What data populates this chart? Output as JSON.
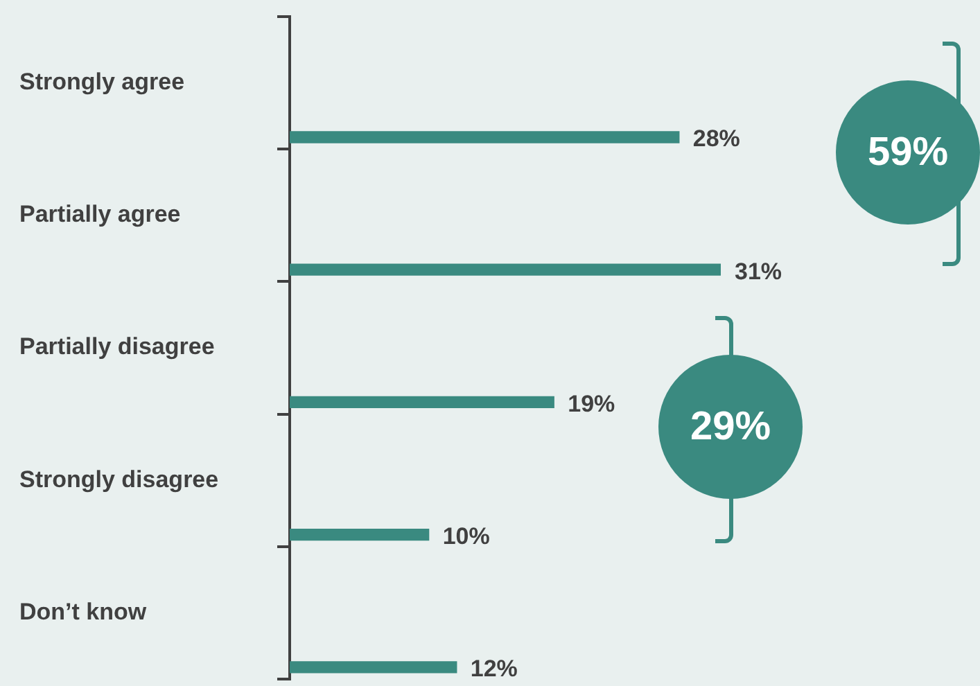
{
  "chart_data": {
    "type": "bar",
    "orientation": "horizontal",
    "categories": [
      "Strongly agree",
      "Partially agree",
      "Partially disagree",
      "Strongly disagree",
      "Don’t know"
    ],
    "values": [
      28,
      31,
      19,
      10,
      12
    ],
    "color": "#3a8a80",
    "data_labels": true,
    "value_labels": [
      "28%",
      "31%",
      "19%",
      "10%",
      "12%"
    ],
    "annotations": [
      "59%",
      "29%"
    ],
    "grid": false,
    "legend": false
  }
}
